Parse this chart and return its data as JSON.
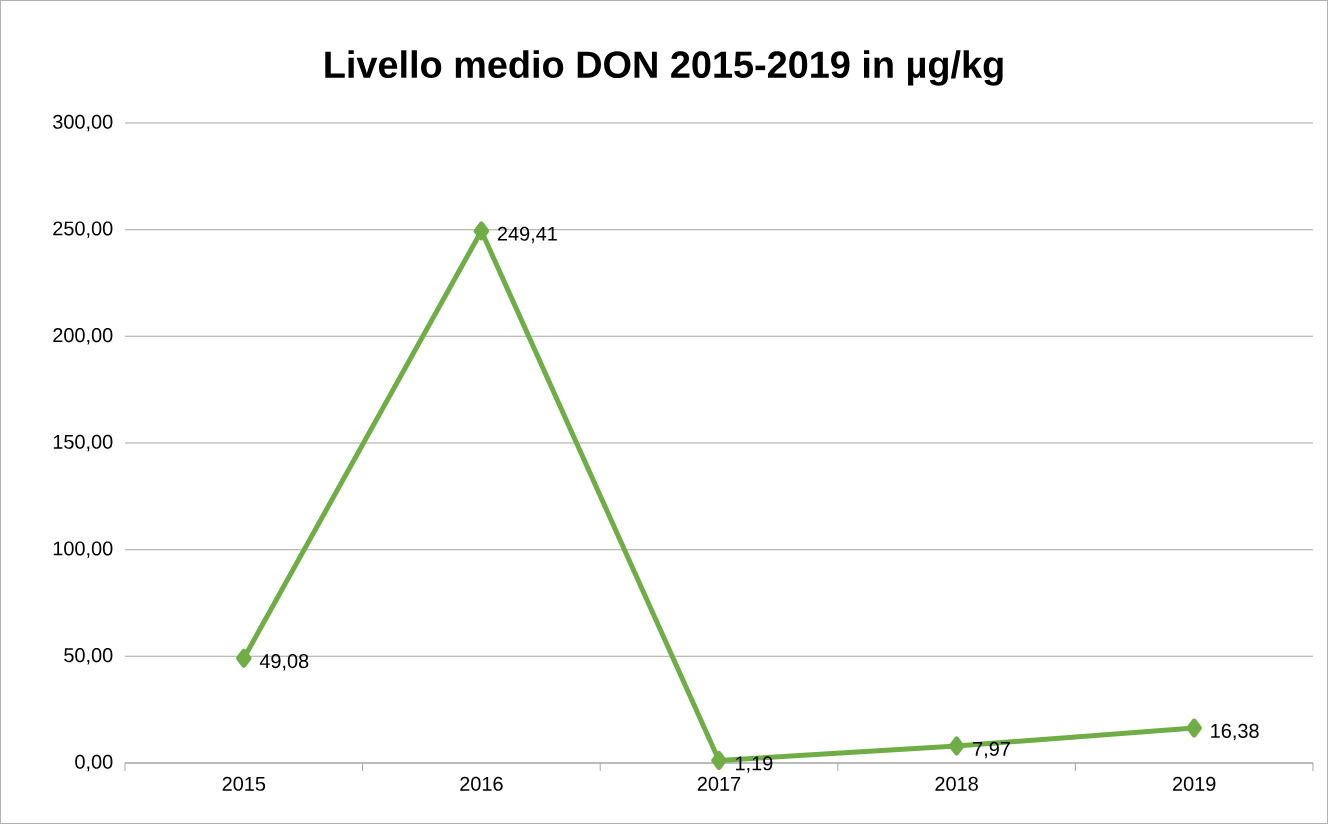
{
  "chart_data": {
    "type": "line",
    "title": "Livello medio DON 2015-2019 in µg/kg",
    "categories": [
      "2015",
      "2016",
      "2017",
      "2018",
      "2019"
    ],
    "values": [
      49.08,
      249.41,
      1.19,
      7.97,
      16.38
    ],
    "value_labels": [
      "49,08",
      "249,41",
      "1,19",
      "7,97",
      "16,38"
    ],
    "color": "#70ad47",
    "marker": "diamond",
    "line_style": "solid",
    "ylim": [
      0,
      300
    ],
    "yticks": [
      {
        "value": 0,
        "label": "0,00"
      },
      {
        "value": 50,
        "label": "50,00"
      },
      {
        "value": 100,
        "label": "100,00"
      },
      {
        "value": 150,
        "label": "150,00"
      },
      {
        "value": 200,
        "label": "200,00"
      },
      {
        "value": 250,
        "label": "250,00"
      },
      {
        "value": 300,
        "label": "300,00"
      }
    ],
    "grid": "y"
  }
}
